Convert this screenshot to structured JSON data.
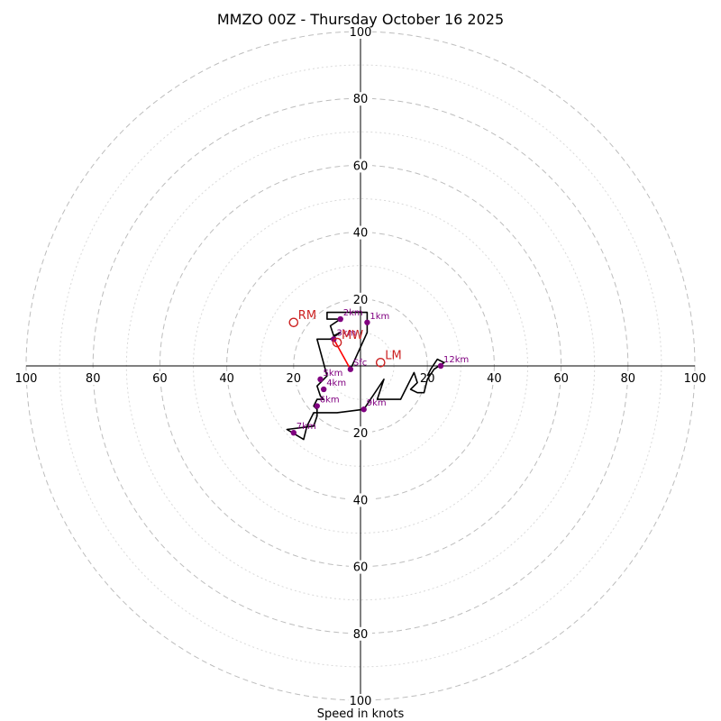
{
  "chart_data": {
    "type": "hodograph",
    "title": "MMZO 00Z - Thursday October 16 2025",
    "xlabel": "Speed in knots",
    "max_speed": 100,
    "rings_labeled": [
      20,
      40,
      60,
      80,
      100
    ],
    "rings_dotted": [
      10,
      30,
      50,
      70,
      90
    ],
    "tick_labels": [
      "20",
      "40",
      "60",
      "80",
      "100"
    ],
    "trace": [
      [
        -3,
        -1
      ],
      [
        2,
        10
      ],
      [
        2,
        16
      ],
      [
        -10,
        16
      ],
      [
        -10,
        14
      ],
      [
        -6,
        14
      ],
      [
        -9,
        12
      ],
      [
        -8,
        9
      ],
      [
        -6,
        10
      ],
      [
        -9,
        8
      ],
      [
        -13,
        8
      ],
      [
        -10,
        -3
      ],
      [
        -13,
        -6
      ],
      [
        -12,
        -9
      ],
      [
        -11,
        -10
      ],
      [
        -13,
        -10
      ],
      [
        -14,
        -12
      ],
      [
        -13,
        -13
      ],
      [
        -13,
        -15
      ],
      [
        -14,
        -18
      ],
      [
        -22,
        -19
      ],
      [
        -17,
        -22
      ],
      [
        -16,
        -18
      ],
      [
        -14,
        -14
      ],
      [
        -7,
        -14
      ],
      [
        1,
        -13
      ],
      [
        7,
        -4
      ],
      [
        5,
        -10
      ],
      [
        12,
        -10
      ],
      [
        16,
        -2
      ],
      [
        17,
        -5
      ],
      [
        15,
        -7
      ],
      [
        17,
        -8
      ],
      [
        19,
        -8
      ],
      [
        20,
        -4
      ],
      [
        22,
        -1
      ],
      [
        25,
        1
      ],
      [
        23,
        2
      ],
      [
        21,
        -1
      ],
      [
        20,
        -3
      ]
    ],
    "km_points": [
      {
        "label": "Sfc",
        "u": -3,
        "v": -1
      },
      {
        "label": "1km",
        "u": 2,
        "v": 13
      },
      {
        "label": "2km",
        "u": -6,
        "v": 14
      },
      {
        "label": "3km",
        "u": -8,
        "v": 8
      },
      {
        "label": "4km",
        "u": -11,
        "v": -7
      },
      {
        "label": "5km",
        "u": -12,
        "v": -4
      },
      {
        "label": "6km",
        "u": -13,
        "v": -12
      },
      {
        "label": "7km",
        "u": -20,
        "v": -20
      },
      {
        "label": "9km",
        "u": 1,
        "v": -13
      },
      {
        "label": "12km",
        "u": 24,
        "v": 0
      }
    ],
    "storm_motions": [
      {
        "label": "RM",
        "u": -20,
        "v": 13
      },
      {
        "label": "LM",
        "u": 6,
        "v": 1
      },
      {
        "label": "MW",
        "u": -7,
        "v": 7
      }
    ],
    "shear_vector": {
      "from": [
        -3,
        -1
      ],
      "to": [
        -8,
        8
      ]
    },
    "colors": {
      "trace": "#000000",
      "km_points": "#800080",
      "storm_motion": "#cc2222",
      "shear_vector": "#ff0000",
      "rings": "#bdbdbd"
    }
  }
}
